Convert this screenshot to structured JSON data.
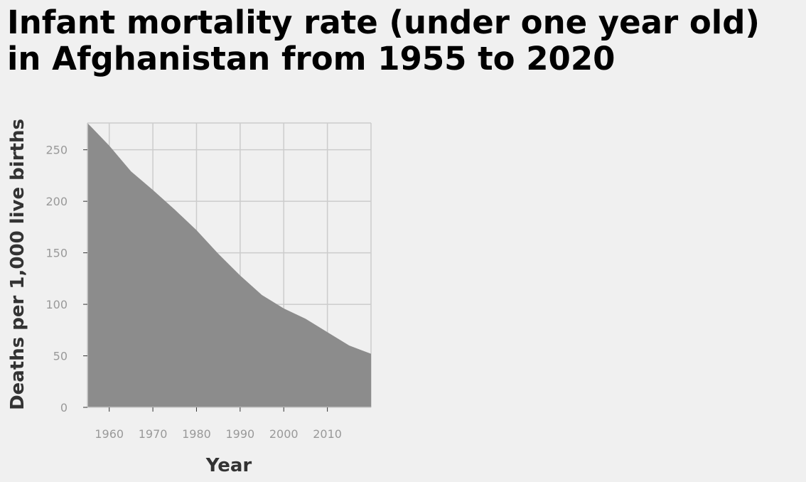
{
  "chart_data": {
    "type": "area",
    "title_lines": [
      "Infant mortality rate (under one year old)",
      "in Afghanistan from 1955 to 2020"
    ],
    "xlabel": "Year",
    "ylabel": "Deaths per 1,000 live births",
    "xlim": [
      1955,
      2020
    ],
    "ylim": [
      0,
      276
    ],
    "x_ticks": [
      1960,
      1970,
      1980,
      1990,
      2000,
      2010
    ],
    "y_ticks": [
      0,
      50,
      100,
      150,
      200,
      250
    ],
    "grid": true,
    "legend": "none",
    "fill_color": "#8c8c8c",
    "grid_color": "#cccccc",
    "series": [
      {
        "x": [
          1955,
          1960,
          1965,
          1970,
          1975,
          1980,
          1985,
          1990,
          1995,
          2000,
          2005,
          2010,
          2015,
          2020
        ],
        "values": [
          276,
          254,
          229,
          211,
          192,
          172,
          149,
          128,
          109,
          96,
          86,
          73,
          60,
          52
        ]
      }
    ]
  }
}
